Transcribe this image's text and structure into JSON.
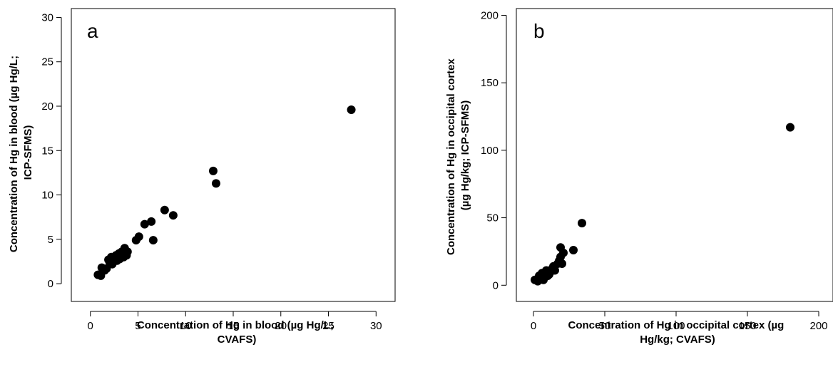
{
  "chart_data": [
    {
      "type": "scatter",
      "panel_label": "a",
      "xlabel_lines": [
        "Concentration of Hg in blood (µg Hg/L;",
        "CVAFS)"
      ],
      "ylabel_lines": [
        "Concentration of Hg in blood (µg Hg/L;",
        "ICP-SFMS)"
      ],
      "xlim": [
        -2,
        32
      ],
      "ylim": [
        -2,
        31
      ],
      "x_ticks": [
        0,
        5,
        10,
        15,
        20,
        25,
        30
      ],
      "x_tick_labels": [
        "0",
        "5",
        "10",
        "15",
        "20",
        "25",
        "30"
      ],
      "y_ticks": [
        0,
        5,
        10,
        15,
        20,
        25,
        30
      ],
      "y_tick_labels": [
        "0",
        "5",
        "10",
        "15",
        "20",
        "25",
        "30"
      ],
      "grid": false,
      "points": [
        {
          "x": 0.8,
          "y": 1.0
        },
        {
          "x": 1.1,
          "y": 0.9
        },
        {
          "x": 1.2,
          "y": 1.8
        },
        {
          "x": 1.5,
          "y": 1.5
        },
        {
          "x": 1.7,
          "y": 1.7
        },
        {
          "x": 1.9,
          "y": 2.7
        },
        {
          "x": 2.0,
          "y": 2.5
        },
        {
          "x": 2.2,
          "y": 3.0
        },
        {
          "x": 2.3,
          "y": 2.2
        },
        {
          "x": 2.5,
          "y": 2.9
        },
        {
          "x": 2.7,
          "y": 3.2
        },
        {
          "x": 2.8,
          "y": 2.6
        },
        {
          "x": 3.0,
          "y": 3.4
        },
        {
          "x": 3.1,
          "y": 2.8
        },
        {
          "x": 3.3,
          "y": 3.6
        },
        {
          "x": 3.5,
          "y": 3.0
        },
        {
          "x": 3.6,
          "y": 4.0
        },
        {
          "x": 3.8,
          "y": 3.2
        },
        {
          "x": 3.9,
          "y": 3.6
        },
        {
          "x": 4.8,
          "y": 4.9
        },
        {
          "x": 5.1,
          "y": 5.3
        },
        {
          "x": 5.7,
          "y": 6.7
        },
        {
          "x": 6.4,
          "y": 7.0
        },
        {
          "x": 6.6,
          "y": 4.9
        },
        {
          "x": 7.8,
          "y": 8.3
        },
        {
          "x": 8.7,
          "y": 7.7
        },
        {
          "x": 12.9,
          "y": 12.7
        },
        {
          "x": 13.2,
          "y": 11.3
        },
        {
          "x": 27.4,
          "y": 19.6
        }
      ]
    },
    {
      "type": "scatter",
      "panel_label": "b",
      "xlabel_lines": [
        "Concentration of Hg in occipital cortex (µg",
        "Hg/kg; CVAFS)"
      ],
      "ylabel_lines": [
        "Concentration of Hg in occipital cortex",
        "(µg Hg/kg; ICP-SFMS)"
      ],
      "xlim": [
        -12,
        210
      ],
      "ylim": [
        -12,
        205
      ],
      "x_ticks": [
        0,
        50,
        100,
        150,
        200
      ],
      "x_tick_labels": [
        "0",
        "50",
        "100",
        "150",
        "200"
      ],
      "y_ticks": [
        0,
        50,
        100,
        150,
        200
      ],
      "y_tick_labels": [
        "0",
        "50",
        "100",
        "150",
        "200"
      ],
      "grid": false,
      "points": [
        {
          "x": 1,
          "y": 4
        },
        {
          "x": 3,
          "y": 3
        },
        {
          "x": 4,
          "y": 7
        },
        {
          "x": 5,
          "y": 5
        },
        {
          "x": 6,
          "y": 9
        },
        {
          "x": 7,
          "y": 4
        },
        {
          "x": 8,
          "y": 6
        },
        {
          "x": 9,
          "y": 11
        },
        {
          "x": 10,
          "y": 7
        },
        {
          "x": 11,
          "y": 8
        },
        {
          "x": 12,
          "y": 10
        },
        {
          "x": 13,
          "y": 12
        },
        {
          "x": 14,
          "y": 14
        },
        {
          "x": 15,
          "y": 11
        },
        {
          "x": 17,
          "y": 16
        },
        {
          "x": 18,
          "y": 18
        },
        {
          "x": 19,
          "y": 21
        },
        {
          "x": 20,
          "y": 16
        },
        {
          "x": 19,
          "y": 28
        },
        {
          "x": 21,
          "y": 24
        },
        {
          "x": 28,
          "y": 26
        },
        {
          "x": 34,
          "y": 46
        },
        {
          "x": 180,
          "y": 117
        }
      ]
    }
  ]
}
